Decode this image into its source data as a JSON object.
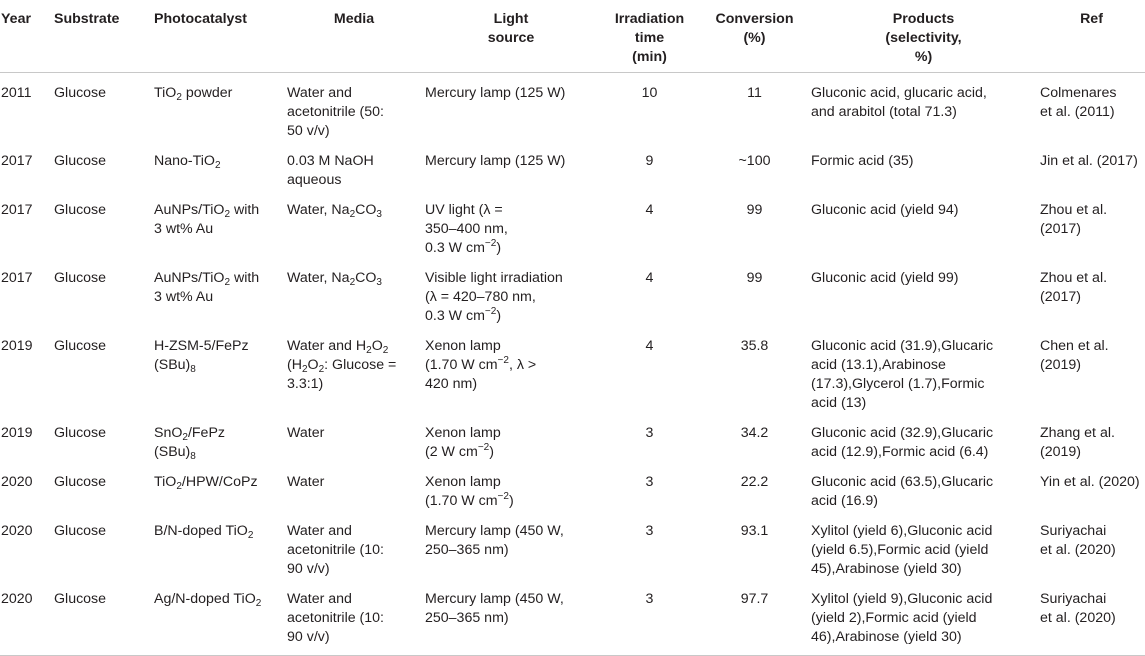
{
  "headers": {
    "year": "Year",
    "substrate": "Substrate",
    "photocatalyst": "Photocatalyst",
    "media": "Media",
    "light_source_1": "Light",
    "light_source_2": "source",
    "time_1": "Irradiation",
    "time_2": "time",
    "time_3": "(min)",
    "conversion_1": "Conversion",
    "conversion_2": "(%)",
    "products_1": "Products",
    "products_2": "(selectivity,",
    "products_3": "%)",
    "ref": "Ref"
  },
  "rows": [
    {
      "year": "2011",
      "substrate": "Glucose",
      "cat_a": "TiO",
      "cat_a_sub": "2",
      "cat_b": " powder",
      "media_1": "Water and",
      "media_2": "acetonitrile (50:",
      "media_3": "50 v/v)",
      "light_1": "Mercury lamp (125 W)",
      "time": "10",
      "conversion": "11",
      "prod_1": "Gluconic acid, glucaric acid,",
      "prod_2": "and arabitol (total 71.3)",
      "ref_1": "Colmenares",
      "ref_2": "et al. (2011)"
    },
    {
      "year": "2017",
      "substrate": "Glucose",
      "cat_a": "Nano-TiO",
      "cat_a_sub": "2",
      "media_1": "0.03 M NaOH",
      "media_2": "aqueous",
      "light_1": "Mercury lamp (125 W)",
      "time": "9",
      "conversion": "~100",
      "prod_1": "Formic acid (35)",
      "ref_1": "Jin et al. (2017)"
    },
    {
      "year": "2017",
      "substrate": "Glucose",
      "cat_a": "AuNPs/TiO",
      "cat_a_sub": "2",
      "cat_b": " with",
      "cat_2": "3 wt% Au",
      "media_a": "Water, Na",
      "media_a_sub": "2",
      "media_b": "CO",
      "media_b_sub": "3",
      "light_1": "UV light (λ =",
      "light_2": "350–400 nm,",
      "light_3a": "0.3 W cm",
      "light_3_sup": "−2",
      "light_3b": ")",
      "time": "4",
      "conversion": "99",
      "prod_1": "Gluconic acid (yield 94)",
      "ref_1": "Zhou et al.",
      "ref_2": "(2017)"
    },
    {
      "year": "2017",
      "substrate": "Glucose",
      "cat_a": "AuNPs/TiO",
      "cat_a_sub": "2",
      "cat_b": " with",
      "cat_2": "3 wt% Au",
      "media_a": "Water, Na",
      "media_a_sub": "2",
      "media_b": "CO",
      "media_b_sub": "3",
      "light_1": "Visible light irradiation",
      "light_2": "(λ = 420–780 nm,",
      "light_3a": "0.3 W cm",
      "light_3_sup": "−2",
      "light_3b": ")",
      "time": "4",
      "conversion": "99",
      "prod_1": "Gluconic acid (yield 99)",
      "ref_1": "Zhou et al.",
      "ref_2": "(2017)"
    },
    {
      "year": "2019",
      "substrate": "Glucose",
      "cat_1": "H-ZSM-5/FePz",
      "cat_2a": "(SBu)",
      "cat_2_sub": "8",
      "media_1a": "Water and H",
      "media_1_sub": "2",
      "media_1b": "O",
      "media_1_sub2": "2",
      "media_2a": "(H",
      "media_2_sub": "2",
      "media_2b": "O",
      "media_2_sub2": "2",
      "media_2c": ": Glucose =",
      "media_3": "3.3:1)",
      "light_1": "Xenon lamp",
      "light_2a": "(1.70 W cm",
      "light_2_sup": "−2",
      "light_2b": ", λ >",
      "light_3": "420 nm)",
      "time": "4",
      "conversion": "35.8",
      "prod_1": "Gluconic acid (31.9),Glucaric",
      "prod_2": "acid (13.1),Arabinose",
      "prod_3": "(17.3),Glycerol (1.7),Formic",
      "prod_4": "acid (13)",
      "ref_1": "Chen et al.",
      "ref_2": "(2019)"
    },
    {
      "year": "2019",
      "substrate": "Glucose",
      "cat_1a": "SnO",
      "cat_1_sub": "2",
      "cat_1b": "/FePz",
      "cat_2a": "(SBu)",
      "cat_2_sub": "8",
      "media_1": "Water",
      "light_1": "Xenon lamp",
      "light_2a": "(2 W cm",
      "light_2_sup": "−2",
      "light_2b": ")",
      "time": "3",
      "conversion": "34.2",
      "prod_1": "Gluconic acid (32.9),Glucaric",
      "prod_2": "acid (12.9),Formic acid (6.4)",
      "ref_1": "Zhang et al.",
      "ref_2": "(2019)"
    },
    {
      "year": "2020",
      "substrate": "Glucose",
      "cat_1a": "TiO",
      "cat_1_sub": "2",
      "cat_1b": "/HPW/CoPz",
      "media_1": "Water",
      "light_1": "Xenon lamp",
      "light_2a": "(1.70 W cm",
      "light_2_sup": "−2",
      "light_2b": ")",
      "time": "3",
      "conversion": "22.2",
      "prod_1": "Gluconic acid (63.5),Glucaric",
      "prod_2": "acid (16.9)",
      "ref_1": "Yin et al. (2020)"
    },
    {
      "year": "2020",
      "substrate": "Glucose",
      "cat_1a": "B/N-doped TiO",
      "cat_1_sub": "2",
      "media_1": "Water and",
      "media_2": "acetonitrile (10:",
      "media_3": "90 v/v)",
      "light_1": "Mercury lamp (450 W,",
      "light_2": "250–365 nm)",
      "time": "3",
      "conversion": "93.1",
      "prod_1": "Xylitol (yield 6),Gluconic acid",
      "prod_2": "(yield 6.5),Formic acid (yield",
      "prod_3": "45),Arabinose (yield 30)",
      "ref_1": "Suriyachai",
      "ref_2": "et al. (2020)"
    },
    {
      "year": "2020",
      "substrate": "Glucose",
      "cat_1a": "Ag/N-doped TiO",
      "cat_1_sub": "2",
      "media_1": "Water and",
      "media_2": "acetonitrile (10:",
      "media_3": "90 v/v)",
      "light_1": "Mercury lamp (450 W,",
      "light_2": "250–365 nm)",
      "time": "3",
      "conversion": "97.7",
      "prod_1": "Xylitol (yield 9),Gluconic acid",
      "prod_2": "(yield 2),Formic acid (yield",
      "prod_3": "46),Arabinose (yield 30)",
      "ref_1": "Suriyachai",
      "ref_2": "et al. (2020)"
    }
  ]
}
